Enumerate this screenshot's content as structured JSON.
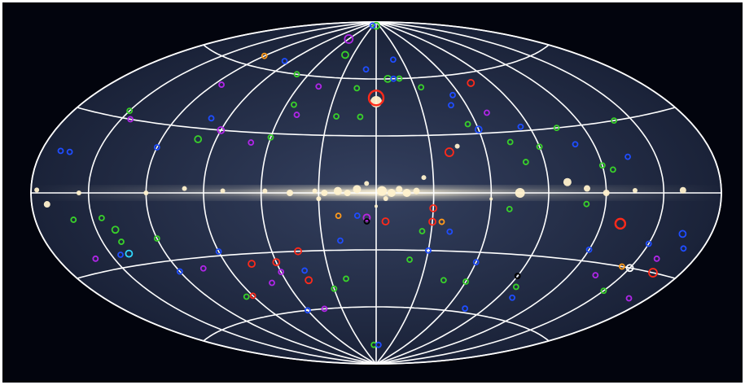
{
  "colors": {
    "background": "#02040d",
    "sky_outer": "#1a2238",
    "sky_inner": "#34405f",
    "grid": "#ffffff",
    "plane_glow": "#fff4d6",
    "source_white": "#fff1cc",
    "marker_red": "#ff2a1a",
    "marker_green": "#39d12a",
    "marker_blue": "#1f4dff",
    "marker_purple": "#b026e8",
    "marker_orange": "#ff9a1a",
    "marker_cyan": "#30d8ff"
  },
  "map": {
    "projection": "aitoff",
    "grid": {
      "longitudes_deg": [
        -180,
        -150,
        -120,
        -90,
        -60,
        -30,
        0,
        30,
        60,
        90,
        120,
        150,
        180
      ],
      "latitudes_deg": [
        -60,
        -30,
        0,
        30,
        60
      ]
    },
    "bright_sources": [
      {
        "lon": 0,
        "lat": 48,
        "r": 7
      },
      {
        "lon": 45,
        "lat": 24,
        "r": 3
      },
      {
        "lon": 0,
        "lat": -7,
        "r": 2
      },
      {
        "lon": 3,
        "lat": 1,
        "r": 6
      },
      {
        "lon": 8,
        "lat": 0,
        "r": 5
      },
      {
        "lon": 12,
        "lat": 2,
        "r": 4
      },
      {
        "lon": 16,
        "lat": 0,
        "r": 5
      },
      {
        "lon": 21,
        "lat": 1,
        "r": 4
      },
      {
        "lon": -10,
        "lat": 2,
        "r": 5
      },
      {
        "lon": -15,
        "lat": 0,
        "r": 4
      },
      {
        "lon": -20,
        "lat": 1,
        "r": 5
      },
      {
        "lon": -27,
        "lat": 0,
        "r": 4
      },
      {
        "lon": -32,
        "lat": 1,
        "r": 3
      },
      {
        "lon": -45,
        "lat": 0,
        "r": 4
      },
      {
        "lon": -58,
        "lat": 1,
        "r": 3
      },
      {
        "lon": 75,
        "lat": 0,
        "r": 6
      },
      {
        "lon": 100,
        "lat": 5,
        "r": 5
      },
      {
        "lon": 110,
        "lat": 2,
        "r": 4
      },
      {
        "lon": 120,
        "lat": 0,
        "r": 4
      },
      {
        "lon": 135,
        "lat": 1,
        "r": 3
      },
      {
        "lon": 160,
        "lat": 1,
        "r": 4
      },
      {
        "lon": -80,
        "lat": 1,
        "r": 3
      },
      {
        "lon": -100,
        "lat": 2,
        "r": 3
      },
      {
        "lon": -120,
        "lat": 0,
        "r": 3
      },
      {
        "lon": -155,
        "lat": 0,
        "r": 3
      },
      {
        "lon": -172,
        "lat": -4,
        "r": 4
      },
      {
        "lon": -177,
        "lat": 1,
        "r": 3
      },
      {
        "lon": 5,
        "lat": -3,
        "r": 3
      },
      {
        "lon": -5,
        "lat": 5,
        "r": 3
      },
      {
        "lon": 25,
        "lat": 8,
        "r": 3
      },
      {
        "lon": 60,
        "lat": -3,
        "r": 2
      },
      {
        "lon": -30,
        "lat": -3,
        "r": 3
      }
    ],
    "markers": [
      {
        "lon": 0,
        "lat": 50,
        "color": "red",
        "r": 9
      },
      {
        "lon": 130,
        "lat": -13,
        "color": "red",
        "r": 6
      },
      {
        "lon": 40,
        "lat": 21,
        "color": "red",
        "r": 5
      },
      {
        "lon": 30,
        "lat": -15,
        "color": "red",
        "r": 4
      },
      {
        "lon": 5,
        "lat": -15,
        "color": "red",
        "r": 4
      },
      {
        "lon": -5,
        "lat": -13,
        "color": "red",
        "r": 4
      },
      {
        "lon": -45,
        "lat": -30,
        "color": "red",
        "r": 4
      },
      {
        "lon": -60,
        "lat": -35,
        "color": "red",
        "r": 4
      },
      {
        "lon": -75,
        "lat": -35,
        "color": "red",
        "r": 4
      },
      {
        "lon": 165,
        "lat": -30,
        "color": "red",
        "r": 5
      },
      {
        "lon": 75,
        "lat": 55,
        "color": "red",
        "r": 4
      },
      {
        "lon": 30,
        "lat": -8,
        "color": "red",
        "r": 4
      },
      {
        "lon": -45,
        "lat": -45,
        "color": "red",
        "r": 4
      },
      {
        "lon": -90,
        "lat": -50,
        "color": "red",
        "r": 3
      },
      {
        "lon": 10,
        "lat": 60,
        "color": "green",
        "r": 4
      },
      {
        "lon": -40,
        "lat": 72,
        "color": "green",
        "r": 4
      },
      {
        "lon": 0,
        "lat": 88,
        "color": "green",
        "r": 4
      },
      {
        "lon": -15,
        "lat": 55,
        "color": "green",
        "r": 3
      },
      {
        "lon": 20,
        "lat": 60,
        "color": "green",
        "r": 3
      },
      {
        "lon": -25,
        "lat": 40,
        "color": "green",
        "r": 3
      },
      {
        "lon": -55,
        "lat": 45,
        "color": "green",
        "r": 3
      },
      {
        "lon": -60,
        "lat": 28,
        "color": "green",
        "r": 3
      },
      {
        "lon": 75,
        "lat": 25,
        "color": "green",
        "r": 3
      },
      {
        "lon": 90,
        "lat": 22,
        "color": "green",
        "r": 3
      },
      {
        "lon": 105,
        "lat": 30,
        "color": "green",
        "r": 3
      },
      {
        "lon": 120,
        "lat": 12,
        "color": "green",
        "r": 3
      },
      {
        "lon": -150,
        "lat": 33,
        "color": "green",
        "r": 3
      },
      {
        "lon": -140,
        "lat": -15,
        "color": "green",
        "r": 4
      },
      {
        "lon": -120,
        "lat": -20,
        "color": "green",
        "r": 3
      },
      {
        "lon": 110,
        "lat": -5,
        "color": "green",
        "r": 3
      },
      {
        "lon": 70,
        "lat": -8,
        "color": "green",
        "r": 3
      },
      {
        "lon": -100,
        "lat": 25,
        "color": "green",
        "r": 4
      },
      {
        "lon": -20,
        "lat": -45,
        "color": "green",
        "r": 3
      },
      {
        "lon": 60,
        "lat": -45,
        "color": "green",
        "r": 3
      },
      {
        "lon": 20,
        "lat": -35,
        "color": "green",
        "r": 3
      },
      {
        "lon": -5,
        "lat": -80,
        "color": "green",
        "r": 3
      },
      {
        "lon": 140,
        "lat": 30,
        "color": "green",
        "r": 3
      },
      {
        "lon": 150,
        "lat": -40,
        "color": "green",
        "r": 3
      },
      {
        "lon": -160,
        "lat": -10,
        "color": "green",
        "r": 3
      },
      {
        "lon": -95,
        "lat": -50,
        "color": "green",
        "r": 3
      },
      {
        "lon": 55,
        "lat": 35,
        "color": "green",
        "r": 3
      },
      {
        "lon": -10,
        "lat": 40,
        "color": "green",
        "r": 3
      },
      {
        "lon": -70,
        "lat": 60,
        "color": "green",
        "r": 3
      },
      {
        "lon": 95,
        "lat": -45,
        "color": "green",
        "r": 3
      },
      {
        "lon": 45,
        "lat": -45,
        "color": "green",
        "r": 3
      },
      {
        "lon": -30,
        "lat": -50,
        "color": "green",
        "r": 3
      },
      {
        "lon": 25,
        "lat": -20,
        "color": "green",
        "r": 3
      },
      {
        "lon": 35,
        "lat": 55,
        "color": "green",
        "r": 3
      },
      {
        "lon": -140,
        "lat": -20,
        "color": "green",
        "r": 3
      },
      {
        "lon": 125,
        "lat": 10,
        "color": "green",
        "r": 3
      },
      {
        "lon": 80,
        "lat": 15,
        "color": "green",
        "r": 3
      },
      {
        "lon": -145,
        "lat": -10,
        "color": "green",
        "r": 3
      },
      {
        "lon": 60,
        "lat": 32,
        "color": "blue",
        "r": 4
      },
      {
        "lon": -120,
        "lat": 20,
        "color": "blue",
        "r": 3
      },
      {
        "lon": -165,
        "lat": 15,
        "color": "blue",
        "r": 3
      },
      {
        "lon": -100,
        "lat": 35,
        "color": "blue",
        "r": 3
      },
      {
        "lon": 15,
        "lat": 60,
        "color": "blue",
        "r": 3
      },
      {
        "lon": -35,
        "lat": 88,
        "color": "blue",
        "r": 3
      },
      {
        "lon": -10,
        "lat": 65,
        "color": "blue",
        "r": 3
      },
      {
        "lon": 20,
        "lat": 70,
        "color": "blue",
        "r": 3
      },
      {
        "lon": 50,
        "lat": 45,
        "color": "blue",
        "r": 3
      },
      {
        "lon": 85,
        "lat": 32,
        "color": "blue",
        "r": 3
      },
      {
        "lon": 110,
        "lat": 22,
        "color": "blue",
        "r": 3
      },
      {
        "lon": 135,
        "lat": 15,
        "color": "blue",
        "r": 3
      },
      {
        "lon": 165,
        "lat": -15,
        "color": "blue",
        "r": 4
      },
      {
        "lon": 170,
        "lat": -20,
        "color": "blue",
        "r": 3
      },
      {
        "lon": 150,
        "lat": -20,
        "color": "blue",
        "r": 3
      },
      {
        "lon": 120,
        "lat": -25,
        "color": "blue",
        "r": 3
      },
      {
        "lon": 100,
        "lat": -50,
        "color": "blue",
        "r": 3
      },
      {
        "lon": 75,
        "lat": -58,
        "color": "blue",
        "r": 3
      },
      {
        "lon": 30,
        "lat": -30,
        "color": "blue",
        "r": 3
      },
      {
        "lon": 40,
        "lat": -20,
        "color": "blue",
        "r": 3
      },
      {
        "lon": -45,
        "lat": -40,
        "color": "blue",
        "r": 3
      },
      {
        "lon": -60,
        "lat": -60,
        "color": "blue",
        "r": 3
      },
      {
        "lon": -90,
        "lat": -28,
        "color": "blue",
        "r": 3
      },
      {
        "lon": -120,
        "lat": -35,
        "color": "blue",
        "r": 3
      },
      {
        "lon": -145,
        "lat": -25,
        "color": "blue",
        "r": 3
      },
      {
        "lon": -170,
        "lat": 15,
        "color": "blue",
        "r": 3
      },
      {
        "lon": -95,
        "lat": 65,
        "color": "blue",
        "r": 3
      },
      {
        "lon": 60,
        "lat": -35,
        "color": "blue",
        "r": 3
      },
      {
        "lon": 5,
        "lat": -80,
        "color": "blue",
        "r": 3
      },
      {
        "lon": -10,
        "lat": -12,
        "color": "blue",
        "r": 3
      },
      {
        "lon": 55,
        "lat": 50,
        "color": "blue",
        "r": 3
      },
      {
        "lon": -20,
        "lat": -25,
        "color": "blue",
        "r": 3
      },
      {
        "lon": -60,
        "lat": 80,
        "color": "purple",
        "r": 5
      },
      {
        "lon": -115,
        "lat": 50,
        "color": "purple",
        "r": 3
      },
      {
        "lon": -90,
        "lat": 30,
        "color": "purple",
        "r": 4
      },
      {
        "lon": -70,
        "lat": 25,
        "color": "purple",
        "r": 3
      },
      {
        "lon": -45,
        "lat": 55,
        "color": "purple",
        "r": 3
      },
      {
        "lon": -5,
        "lat": -13,
        "color": "purple",
        "r": 4
      },
      {
        "lon": -160,
        "lat": -25,
        "color": "purple",
        "r": 3
      },
      {
        "lon": -145,
        "lat": 30,
        "color": "purple",
        "r": 3
      },
      {
        "lon": -105,
        "lat": -35,
        "color": "purple",
        "r": 3
      },
      {
        "lon": -70,
        "lat": -45,
        "color": "purple",
        "r": 3
      },
      {
        "lon": -45,
        "lat": -60,
        "color": "purple",
        "r": 3
      },
      {
        "lon": 70,
        "lat": 40,
        "color": "purple",
        "r": 3
      },
      {
        "lon": 135,
        "lat": -35,
        "color": "purple",
        "r": 3
      },
      {
        "lon": 160,
        "lat": -25,
        "color": "purple",
        "r": 3
      },
      {
        "lon": 170,
        "lat": -40,
        "color": "purple",
        "r": 3
      },
      {
        "lon": -60,
        "lat": -40,
        "color": "purple",
        "r": 3
      },
      {
        "lon": -50,
        "lat": 40,
        "color": "purple",
        "r": 3
      },
      {
        "lon": -120,
        "lat": 65,
        "color": "orange",
        "r": 3
      },
      {
        "lon": 35,
        "lat": -15,
        "color": "orange",
        "r": 3
      },
      {
        "lon": 145,
        "lat": -30,
        "color": "orange",
        "r": 3
      },
      {
        "lon": -20,
        "lat": -12,
        "color": "orange",
        "r": 3
      },
      {
        "lon": -140,
        "lat": -25,
        "color": "cyan",
        "r": 4
      },
      {
        "lon": -5,
        "lat": -15,
        "color": "black",
        "r": 3
      },
      {
        "lon": 90,
        "lat": -40,
        "color": "black",
        "r": 3
      },
      {
        "lon": 150,
        "lat": -30,
        "color": "white",
        "r": 4
      }
    ]
  }
}
